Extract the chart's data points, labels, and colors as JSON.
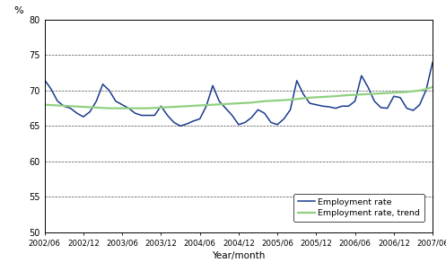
{
  "xlabel": "Year/month",
  "ylabel_label": "%",
  "ylim": [
    50,
    80
  ],
  "yticks": [
    50,
    55,
    60,
    65,
    70,
    75,
    80
  ],
  "x_labels": [
    "2002/06",
    "2002/12",
    "2003/06",
    "2003/12",
    "2004/06",
    "2004/12",
    "2005/06",
    "2005/12",
    "2006/06",
    "2006/12",
    "2007/06"
  ],
  "line_color_rate": "#1a3a8c",
  "line_color_trend": "#90d080",
  "background_color": "#ffffff",
  "legend_labels": [
    "Employment rate",
    "Employment rate, trend"
  ],
  "emp_rate": [
    71.5,
    70.2,
    68.5,
    67.8,
    67.5,
    66.8,
    66.3,
    67.0,
    68.5,
    70.9,
    70.0,
    68.5,
    68.0,
    67.5,
    66.8,
    66.5,
    66.5,
    66.5,
    67.8,
    66.5,
    65.5,
    65.0,
    65.3,
    65.7,
    66.0,
    67.8,
    70.7,
    68.5,
    67.5,
    66.5,
    65.2,
    65.5,
    66.2,
    67.3,
    66.8,
    65.5,
    65.2,
    66.0,
    67.3,
    71.4,
    69.5,
    68.2,
    68.0,
    67.8,
    67.7,
    67.5,
    67.8,
    67.8,
    68.5,
    72.1,
    70.5,
    68.5,
    67.6,
    67.5,
    69.2,
    69.0,
    67.5,
    67.2,
    68.0,
    70.1,
    74.0
  ],
  "trend": [
    68.0,
    67.95,
    67.9,
    67.85,
    67.8,
    67.75,
    67.7,
    67.65,
    67.6,
    67.55,
    67.5,
    67.5,
    67.5,
    67.5,
    67.5,
    67.5,
    67.5,
    67.55,
    67.6,
    67.65,
    67.7,
    67.75,
    67.8,
    67.85,
    67.9,
    67.95,
    68.0,
    68.05,
    68.1,
    68.15,
    68.2,
    68.25,
    68.3,
    68.4,
    68.5,
    68.55,
    68.6,
    68.65,
    68.7,
    68.8,
    68.9,
    69.0,
    69.05,
    69.1,
    69.15,
    69.2,
    69.3,
    69.35,
    69.4,
    69.45,
    69.5,
    69.55,
    69.6,
    69.65,
    69.7,
    69.75,
    69.8,
    69.9,
    70.0,
    70.2,
    70.5
  ]
}
